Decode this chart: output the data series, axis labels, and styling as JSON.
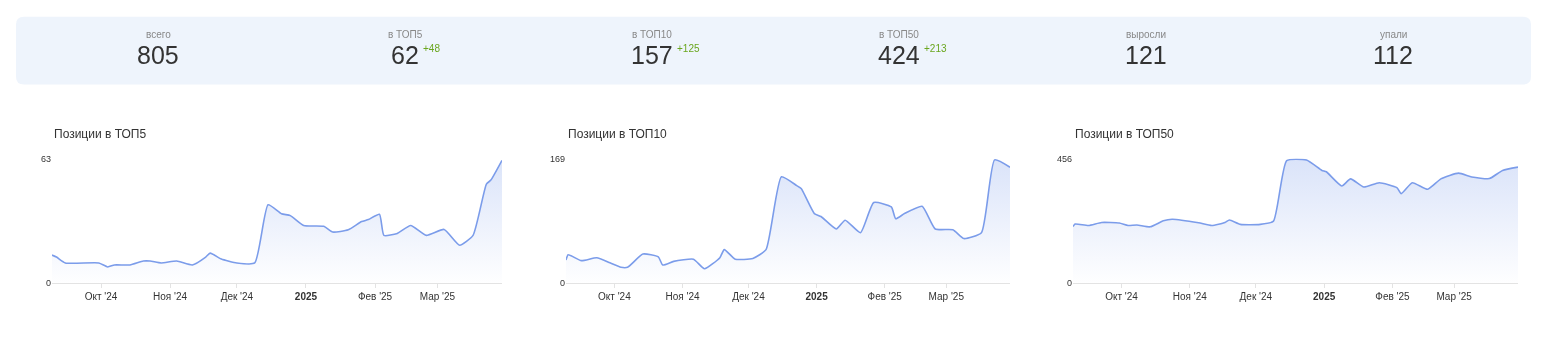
{
  "chart_data": [
    {
      "type": "other",
      "categories": [
        "всего",
        "в ТОП5",
        "в ТОП10",
        "в ТОП50",
        "выросли",
        "упали"
      ],
      "data_labels": true,
      "values": [
        805,
        62,
        157,
        424,
        121,
        112
      ],
      "annotations": [
        {
          "text": "+48",
          "x": "в ТОП5"
        },
        {
          "text": "+125",
          "x": "в ТОП10"
        },
        {
          "text": "+213",
          "x": "в ТОП50"
        }
      ]
    },
    {
      "type": "area",
      "title": "Позиции в ТОП5",
      "color": "#7b9cea",
      "x": [
        "2024-09-09",
        "2024-09-11",
        "2024-09-15",
        "2024-09-30",
        "2024-10-04",
        "2024-10-07",
        "2024-10-14",
        "2024-10-20",
        "2024-10-23",
        "2024-10-28",
        "2024-11-04",
        "2024-11-11",
        "2024-11-17",
        "2024-11-19",
        "2024-11-24",
        "2024-12-01",
        "2024-12-09",
        "2024-12-15",
        "2024-12-21",
        "2024-12-25",
        "2024-12-31",
        "2025-01-09",
        "2025-01-13",
        "2025-01-20",
        "2025-01-26",
        "2025-01-29",
        "2025-02-03",
        "2025-02-05",
        "2025-02-11",
        "2025-02-17",
        "2025-02-24",
        "2025-03-04",
        "2025-03-11",
        "2025-03-17",
        "2025-03-23",
        "2025-03-25",
        "2025-03-30"
      ],
      "values": [
        14,
        13,
        10,
        10,
        8,
        9,
        9,
        11,
        11,
        10,
        11,
        9,
        13,
        15,
        12,
        10,
        10,
        39.5,
        35,
        34,
        29,
        28.6,
        25.7,
        26.8,
        31,
        32,
        34.7,
        24,
        25,
        29,
        24,
        27,
        19,
        24,
        50,
        52,
        62
      ],
      "xlim": [
        "2024-09-09",
        "2025-03-30"
      ],
      "xticks": [
        {
          "value": "2024-10-01",
          "label": "Окт '24"
        },
        {
          "value": "2024-11-01",
          "label": "Ноя '24"
        },
        {
          "value": "2024-12-01",
          "label": "Дек '24"
        },
        {
          "value": "2025-01-01",
          "label": "2025"
        },
        {
          "value": "2025-02-01",
          "label": "Фев '25"
        },
        {
          "value": "2025-03-01",
          "label": "Мар '25"
        }
      ],
      "ylim": [
        0,
        63
      ],
      "yticks": [
        0,
        63
      ]
    },
    {
      "type": "area",
      "title": "Позиции в ТОП10",
      "color": "#7b9cea",
      "x": [
        "2024-09-09",
        "2024-09-10",
        "2024-09-16",
        "2024-09-23",
        "2024-09-29",
        "2024-10-04",
        "2024-10-07",
        "2024-10-14",
        "2024-10-21",
        "2024-10-23",
        "2024-10-28",
        "2024-11-06",
        "2024-11-11",
        "2024-11-18",
        "2024-11-20",
        "2024-11-25",
        "2024-12-03",
        "2024-12-09",
        "2024-12-16",
        "2024-12-23",
        "2024-12-25",
        "2024-12-31",
        "2025-01-03",
        "2025-01-10",
        "2025-01-14",
        "2025-01-21",
        "2025-01-27",
        "2025-02-04",
        "2025-02-06",
        "2025-02-10",
        "2025-02-18",
        "2025-02-24",
        "2025-03-04",
        "2025-03-09",
        "2025-03-17",
        "2025-03-23",
        "2025-03-30"
      ],
      "values": [
        31,
        38,
        30,
        34,
        27,
        21,
        21,
        39,
        35,
        24,
        29,
        32,
        19,
        34,
        45,
        32,
        33,
        45,
        144,
        132,
        128,
        94,
        90,
        73,
        85,
        68,
        109,
        103,
        87,
        94,
        104,
        73,
        72,
        60,
        68,
        167,
        157
      ],
      "xlim": [
        "2024-09-09",
        "2025-03-30"
      ],
      "xticks": [
        {
          "value": "2024-10-01",
          "label": "Окт '24"
        },
        {
          "value": "2024-11-01",
          "label": "Ноя '24"
        },
        {
          "value": "2024-12-01",
          "label": "Дек '24"
        },
        {
          "value": "2025-01-01",
          "label": "2025"
        },
        {
          "value": "2025-02-01",
          "label": "Фев '25"
        },
        {
          "value": "2025-03-01",
          "label": "Мар '25"
        }
      ],
      "ylim": [
        0,
        169
      ],
      "yticks": [
        0,
        169
      ]
    },
    {
      "type": "area",
      "title": "Позиции в ТОП50",
      "color": "#7b9cea",
      "x": [
        "2024-09-09",
        "2024-09-10",
        "2024-09-16",
        "2024-09-22",
        "2024-09-30",
        "2024-10-04",
        "2024-10-08",
        "2024-10-14",
        "2024-10-20",
        "2024-10-24",
        "2024-11-05",
        "2024-11-11",
        "2024-11-17",
        "2024-11-19",
        "2024-11-24",
        "2024-12-03",
        "2024-12-09",
        "2024-12-15",
        "2024-12-24",
        "2024-12-31",
        "2025-01-02",
        "2025-01-09",
        "2025-01-13",
        "2025-01-19",
        "2025-01-26",
        "2025-02-03",
        "2025-02-05",
        "2025-02-10",
        "2025-02-17",
        "2025-02-23",
        "2025-03-03",
        "2025-03-09",
        "2025-03-17",
        "2025-03-23",
        "2025-03-30"
      ],
      "values": [
        206,
        215,
        210,
        221,
        219,
        210,
        212,
        205,
        227,
        233,
        220,
        210,
        221,
        230,
        214,
        214,
        226,
        448,
        450,
        412,
        407,
        355,
        381,
        351,
        367,
        349,
        327,
        367,
        343,
        381,
        402,
        388,
        382,
        412,
        424
      ],
      "xlim": [
        "2024-09-09",
        "2025-03-30"
      ],
      "xticks": [
        {
          "value": "2024-10-01",
          "label": "Окт '24"
        },
        {
          "value": "2024-11-01",
          "label": "Ноя '24"
        },
        {
          "value": "2024-12-01",
          "label": "Дек '24"
        },
        {
          "value": "2025-01-01",
          "label": "2025"
        },
        {
          "value": "2025-02-01",
          "label": "Фев '25"
        },
        {
          "value": "2025-03-01",
          "label": "Мар '25"
        }
      ],
      "ylim": [
        0,
        456
      ],
      "yticks": [
        0,
        456
      ]
    }
  ]
}
